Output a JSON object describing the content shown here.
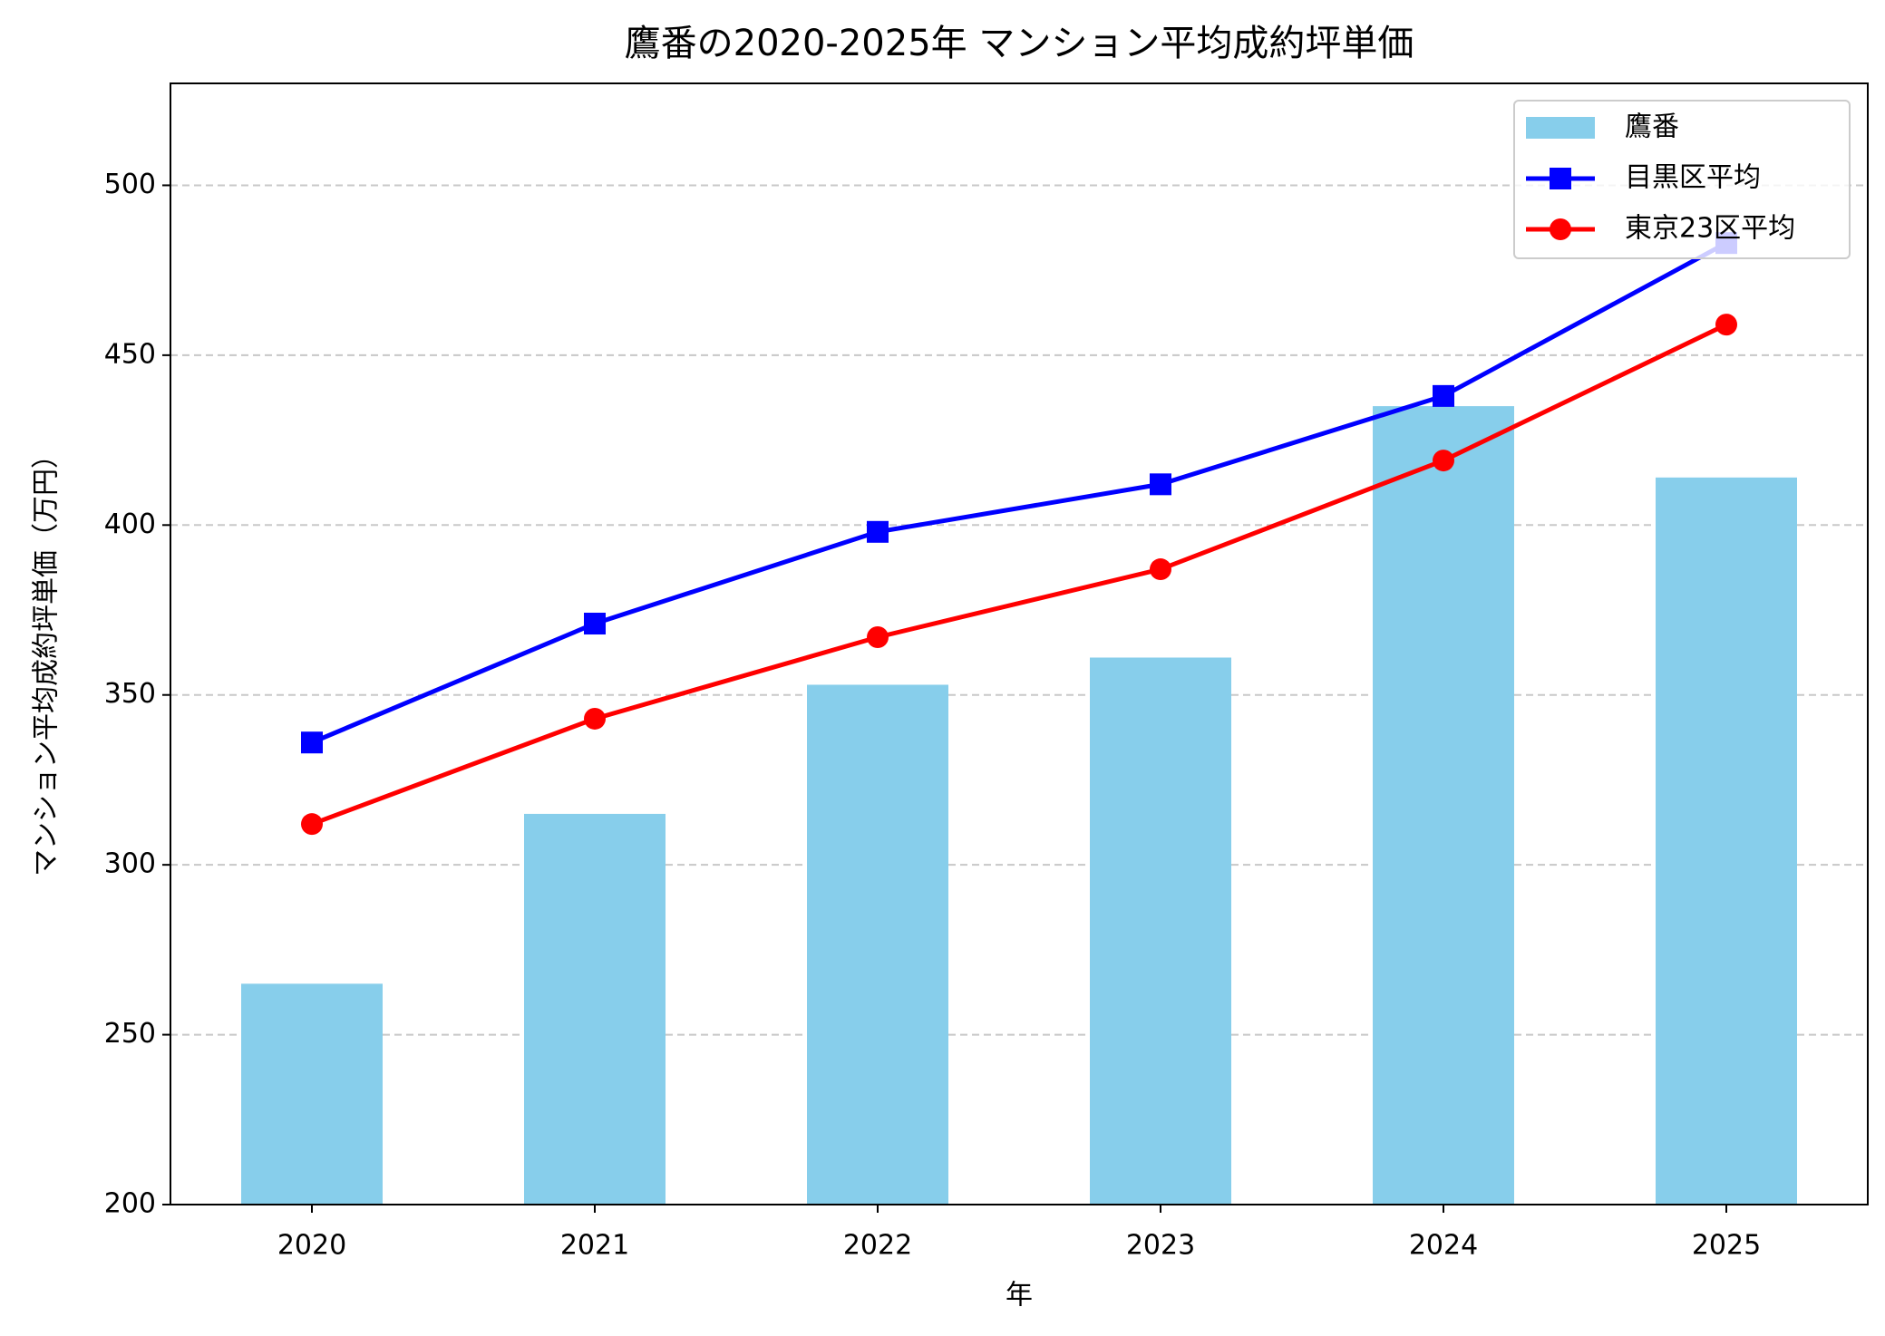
{
  "chart_data": {
    "type": "bar",
    "title": "鷹番の2020-2025年 マンション平均成約坪単価",
    "x_label": "年",
    "y_label": "マンション平均成約坪単価（万円）",
    "categories": [
      "2020",
      "2021",
      "2022",
      "2023",
      "2024",
      "2025"
    ],
    "series": [
      {
        "name": "鷹番",
        "type": "bar",
        "color": "#87ceeb",
        "values": [
          265,
          315,
          353,
          361,
          435,
          414
        ]
      },
      {
        "name": "目黒区平均",
        "type": "line",
        "marker": "square",
        "color": "#0000ff",
        "values": [
          336,
          371,
          398,
          412,
          438,
          483
        ]
      },
      {
        "name": "東京23区平均",
        "type": "line",
        "marker": "circle",
        "color": "#ff0000",
        "values": [
          312,
          343,
          367,
          387,
          419,
          459
        ]
      }
    ],
    "ylim": [
      200,
      530
    ],
    "yticks": [
      200,
      250,
      300,
      350,
      400,
      450,
      500
    ],
    "grid": true,
    "legend": "upper right"
  }
}
